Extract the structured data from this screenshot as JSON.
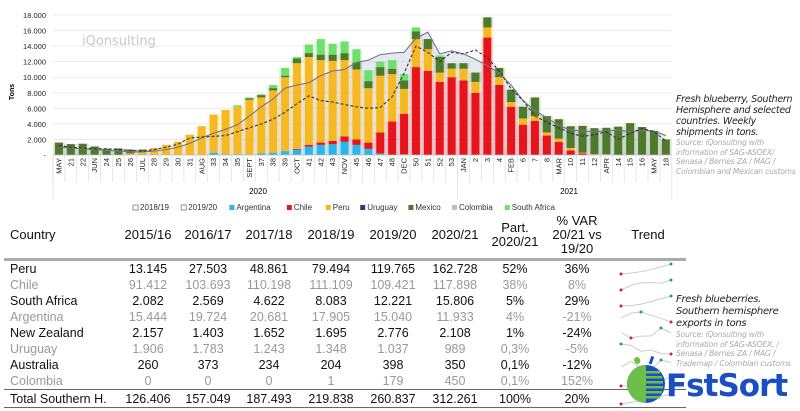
{
  "chart_data": {
    "type": "bar",
    "stacked": true,
    "watermark": "iQonsulting",
    "ylabel": "Tons",
    "ylim": [
      0,
      18000
    ],
    "yticks": [
      "-",
      "2.000",
      "4.000",
      "6.000",
      "8.000",
      "10.000",
      "12.000",
      "14.000",
      "16.000",
      "18.000"
    ],
    "grid": true,
    "legend_placement": "bottom",
    "years": [
      "2020",
      "2021"
    ],
    "categories": [
      "MAY",
      "21",
      "22",
      "JUN",
      "24",
      "25",
      "26",
      "JUL",
      "28",
      "29",
      "30",
      "31",
      "AUG",
      "33",
      "34",
      "35",
      "SEPT",
      "37",
      "38",
      "39",
      "OCT",
      "41",
      "42",
      "43",
      "NOV",
      "45",
      "46",
      "47",
      "48",
      "DEC",
      "50",
      "51",
      "52",
      "53",
      "JAN",
      "2",
      "3",
      "4",
      "FEB",
      "6",
      "7",
      "8",
      "MAR",
      "10",
      "11",
      "12",
      "APR",
      "14",
      "15",
      "16",
      "MAY",
      "18"
    ],
    "series": [
      {
        "name": "Argentina",
        "color": "#29b6e8",
        "values": [
          0,
          0,
          0,
          0,
          0,
          0,
          0,
          0,
          0,
          0,
          0,
          0,
          0,
          300,
          100,
          100,
          100,
          200,
          300,
          500,
          700,
          1100,
          1300,
          1400,
          1700,
          1300,
          800,
          200,
          0,
          100,
          0,
          0,
          0,
          0,
          0,
          0,
          0,
          0,
          0,
          0,
          0,
          0,
          0,
          0,
          0,
          0,
          0,
          0,
          0,
          0,
          0,
          0
        ]
      },
      {
        "name": "Chile",
        "color": "#e8141b",
        "values": [
          0,
          0,
          0,
          0,
          0,
          0,
          0,
          0,
          0,
          0,
          0,
          0,
          0,
          0,
          0,
          0,
          0,
          0,
          0,
          0,
          100,
          200,
          300,
          400,
          700,
          700,
          800,
          2700,
          4300,
          5200,
          11300,
          10800,
          9400,
          10000,
          9600,
          8000,
          15100,
          9000,
          6200,
          3900,
          4400,
          2500,
          1700,
          600,
          200,
          0,
          0,
          0,
          0,
          0,
          0,
          0
        ]
      },
      {
        "name": "Peru",
        "color": "#f7b923",
        "values": [
          0,
          0,
          0,
          0,
          0,
          0,
          200,
          400,
          900,
          1300,
          1700,
          2600,
          3700,
          4900,
          5700,
          6100,
          7000,
          7200,
          8000,
          9500,
          11000,
          11300,
          10600,
          10300,
          9800,
          9000,
          7000,
          7300,
          6100,
          3200,
          3600,
          2800,
          1200,
          1100,
          1500,
          1400,
          1300,
          1000,
          600,
          800,
          600,
          400,
          400,
          300,
          100,
          100,
          100,
          0,
          0,
          0,
          0,
          0
        ]
      },
      {
        "name": "Uruguay",
        "color": "#4b2c7f",
        "values": [
          0,
          0,
          0,
          0,
          0,
          0,
          0,
          0,
          0,
          0,
          0,
          0,
          0,
          0,
          0,
          0,
          0,
          0,
          0,
          0,
          0,
          0,
          0,
          0,
          0,
          0,
          0,
          0,
          0,
          0,
          0,
          0,
          0,
          0,
          0,
          0,
          0,
          0,
          0,
          0,
          0,
          0,
          0,
          0,
          0,
          0,
          0,
          0,
          0,
          0,
          0,
          0
        ]
      },
      {
        "name": "Mexico",
        "color": "#4e7a2b",
        "values": [
          1600,
          1400,
          1450,
          1100,
          800,
          850,
          500,
          300,
          0,
          0,
          0,
          0,
          0,
          0,
          0,
          0,
          200,
          300,
          300,
          200,
          600,
          500,
          700,
          800,
          900,
          900,
          900,
          1100,
          700,
          1100,
          1000,
          1300,
          2000,
          700,
          700,
          1200,
          1300,
          1200,
          1600,
          1500,
          2400,
          2100,
          2500,
          2800,
          3450,
          3350,
          3400,
          3650,
          4100,
          3600,
          3100,
          2000
        ]
      },
      {
        "name": "Colombia",
        "color": "#a8c5e6",
        "values": [
          0,
          0,
          0,
          0,
          0,
          0,
          0,
          0,
          0,
          0,
          0,
          0,
          0,
          0,
          0,
          0,
          0,
          0,
          0,
          0,
          0,
          0,
          0,
          0,
          0,
          0,
          0,
          0,
          0,
          0,
          0,
          0,
          0,
          0,
          0,
          0,
          0,
          0,
          0,
          0,
          0,
          0,
          0,
          0,
          0,
          0,
          0,
          0,
          0,
          0,
          0,
          0
        ]
      },
      {
        "name": "South Africa",
        "color": "#6fe06b",
        "values": [
          0,
          0,
          0,
          0,
          0,
          0,
          0,
          0,
          0,
          0,
          0,
          0,
          0,
          0,
          0,
          200,
          100,
          100,
          400,
          1000,
          200,
          1100,
          2000,
          1400,
          1500,
          1700,
          1400,
          700,
          1100,
          800,
          500,
          0,
          200,
          0,
          0,
          0,
          0,
          0,
          0,
          0,
          0,
          0,
          0,
          0,
          0,
          0,
          0,
          0,
          0,
          0,
          0,
          0
        ]
      }
    ],
    "lines": [
      {
        "name": "2018/19",
        "style": "solid-area",
        "color": "#6e7690",
        "values": [
          1000,
          900,
          800,
          700,
          600,
          500,
          400,
          400,
          500,
          700,
          1000,
          1500,
          2200,
          2800,
          3300,
          3900,
          5000,
          6200,
          7200,
          8600,
          9000,
          9300,
          10200,
          10800,
          11000,
          11900,
          12200,
          12900,
          13100,
          13200,
          15000,
          15800,
          13000,
          13400,
          13000,
          12300,
          11500,
          10500,
          9000,
          7000,
          5700,
          4800,
          3800,
          3200,
          3100,
          3000,
          3100,
          3200,
          3000,
          3200,
          3100,
          2500
        ]
      },
      {
        "name": "2019/20",
        "style": "dashed",
        "color": "#333333",
        "values": [
          1200,
          1000,
          900,
          800,
          800,
          700,
          600,
          500,
          700,
          1000,
          1400,
          2200,
          2300,
          2400,
          2500,
          3000,
          3500,
          4000,
          4600,
          5500,
          6600,
          7600,
          7000,
          6800,
          6500,
          6200,
          6000,
          6100,
          7500,
          10500,
          14000,
          13200,
          12000,
          13200,
          13000,
          13500,
          12500,
          10800,
          8500,
          7000,
          5000,
          4200,
          3500,
          2800,
          2400,
          2600,
          3000,
          2000,
          2800,
          3400,
          3000,
          1800
        ]
      }
    ]
  },
  "chart_caption": {
    "title": "Fresh blueberry, Southern Hemisphere and selected countries. Weekly shipments in tons.",
    "source": "Source: iQonsulting with information of SAG-ASOEX/ Senasa / Berries ZA / MAG / Colombian and Mexican customs"
  },
  "table": {
    "headers": [
      "Country",
      "2015/16",
      "2016/17",
      "2017/18",
      "2018/19",
      "2019/20",
      "2020/21",
      "Part. 2020/21",
      "% VAR 20/21 vs 19/20",
      "Trend"
    ],
    "rows": [
      {
        "cells": [
          "Peru",
          "13.145",
          "27.503",
          "48.861",
          "79.494",
          "119.765",
          "162.728",
          "52%",
          "36%"
        ],
        "trend": [
          13145,
          27503,
          48861,
          79494,
          119765,
          162728
        ]
      },
      {
        "cells": [
          "Chile",
          "91.412",
          "103.693",
          "110.198",
          "111.109",
          "109.421",
          "117.898",
          "38%",
          "8%"
        ],
        "trend": [
          91412,
          103693,
          110198,
          111109,
          109421,
          117898
        ]
      },
      {
        "cells": [
          "South Africa",
          "2.082",
          "2.569",
          "4.622",
          "8.083",
          "12.221",
          "15.806",
          "5%",
          "29%"
        ],
        "trend": [
          2082,
          2569,
          4622,
          8083,
          12221,
          15806
        ]
      },
      {
        "cells": [
          "Argentina",
          "15.444",
          "19.724",
          "20.681",
          "17.905",
          "15.040",
          "11.933",
          "4%",
          "-21%"
        ],
        "trend": [
          15444,
          19724,
          20681,
          17905,
          15040,
          11933
        ]
      },
      {
        "cells": [
          "New Zealand",
          "2.157",
          "1.403",
          "1.652",
          "1.695",
          "2.776",
          "2.108",
          "1%",
          "-24%"
        ],
        "trend": [
          2157,
          1403,
          1652,
          1695,
          2776,
          2108
        ]
      },
      {
        "cells": [
          "Uruguay",
          "1.906",
          "1.783",
          "1.243",
          "1.348",
          "1.037",
          "989",
          "0,3%",
          "-5%"
        ],
        "trend": [
          1906,
          1783,
          1243,
          1348,
          1037,
          989
        ]
      },
      {
        "cells": [
          "Australia",
          "260",
          "373",
          "234",
          "204",
          "398",
          "350",
          "0,1%",
          "-12%"
        ],
        "trend": [
          260,
          373,
          234,
          204,
          398,
          350
        ]
      },
      {
        "cells": [
          "Colombia",
          "0",
          "0",
          "0",
          "1",
          "179",
          "450",
          "0,1%",
          "152%"
        ],
        "trend": [
          0,
          0,
          0,
          1,
          179,
          450
        ]
      }
    ],
    "total": {
      "cells": [
        "Total Southern H.",
        "126.406",
        "157.049",
        "187.493",
        "219.838",
        "260.837",
        "312.261",
        "100%",
        "20%"
      ],
      "trend": [
        126406,
        157049,
        187493,
        219838,
        260837,
        312261
      ]
    }
  },
  "table_caption": {
    "title": "Fresh blueberries. Southern hemisphere exports in tons",
    "source": "Source: iQonsulting with information of SAG-ASOEX, / Senasa / Berries ZA / MAG / Trademap / Colombian customs"
  },
  "logo": {
    "text": "FstSort",
    "color": "#1a4fc4"
  },
  "colors": {
    "trend_min": "#c0283a",
    "trend_max": "#2a9a7a"
  }
}
